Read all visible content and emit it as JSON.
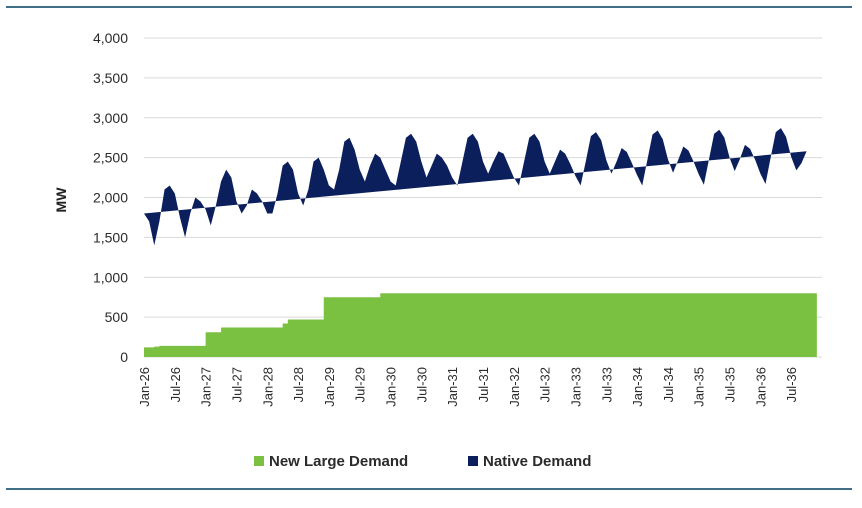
{
  "chart_data": {
    "type": "area",
    "stacked": true,
    "title": "",
    "xlabel": "",
    "ylabel": "MW",
    "ylim": [
      0,
      4000
    ],
    "yticks": [
      "0",
      "500",
      "1,000",
      "1,500",
      "2,000",
      "2,500",
      "3,000",
      "3,500",
      "4,000"
    ],
    "x_tick_labels": [
      "Jan-26",
      "Jul-26",
      "Jan-27",
      "Jul-27",
      "Jan-28",
      "Jul-28",
      "Jan-29",
      "Jul-29",
      "Jan-30",
      "Jul-30",
      "Jan-31",
      "Jul-31",
      "Jan-32",
      "Jul-32",
      "Jan-33",
      "Jul-33",
      "Jan-34",
      "Jul-34",
      "Jan-35",
      "Jul-35",
      "Jan-36",
      "Jul-36"
    ],
    "grid": true,
    "legend": "bottom",
    "x_start": "Jan-26",
    "x_interval": "month",
    "series": [
      {
        "name": "New Large Demand",
        "color": "#7ac142",
        "values": [
          120,
          120,
          130,
          140,
          140,
          140,
          140,
          140,
          140,
          140,
          140,
          140,
          310,
          310,
          310,
          370,
          370,
          370,
          370,
          370,
          370,
          370,
          370,
          370,
          370,
          370,
          370,
          420,
          470,
          470,
          470,
          470,
          470,
          470,
          470,
          750,
          750,
          750,
          750,
          750,
          750,
          750,
          750,
          750,
          750,
          750,
          800,
          800,
          800,
          800,
          800,
          800,
          800,
          800,
          800,
          800,
          800,
          800,
          800,
          800,
          800,
          800,
          800,
          800,
          800,
          800,
          800,
          800,
          800,
          800,
          800,
          800,
          800,
          800,
          800,
          800,
          800,
          800,
          800,
          800,
          800,
          800,
          800,
          800,
          800,
          800,
          800,
          800,
          800,
          800,
          800,
          800,
          800,
          800,
          800,
          800,
          800,
          800,
          800,
          800,
          800,
          800,
          800,
          800,
          800,
          800,
          800,
          800,
          800,
          800,
          800,
          800,
          800,
          800,
          800,
          800,
          800,
          800,
          800,
          800,
          800,
          800,
          800,
          800,
          800,
          800,
          800,
          800,
          800,
          800,
          800,
          800
        ]
      },
      {
        "name": "Native Demand",
        "color": "#0b1f5c",
        "total_values": [
          1800,
          1700,
          1400,
          1700,
          2100,
          2150,
          2050,
          1750,
          1500,
          1800,
          2000,
          1950,
          1850,
          1650,
          1900,
          2200,
          2350,
          2250,
          1950,
          1800,
          1900,
          2100,
          2050,
          1950,
          1800,
          1800,
          2050,
          2400,
          2450,
          2350,
          2050,
          1900,
          2100,
          2450,
          2500,
          2350,
          2150,
          2100,
          2350,
          2700,
          2750,
          2600,
          2350,
          2200,
          2400,
          2550,
          2500,
          2350,
          2200,
          2150,
          2450,
          2750,
          2800,
          2700,
          2450,
          2250,
          2400,
          2550,
          2500,
          2400,
          2250,
          2150,
          2450,
          2750,
          2800,
          2700,
          2450,
          2300,
          2450,
          2580,
          2550,
          2400,
          2250,
          2150,
          2450,
          2750,
          2800,
          2700,
          2450,
          2300,
          2450,
          2600,
          2550,
          2420,
          2270,
          2150,
          2450,
          2770,
          2820,
          2720,
          2470,
          2300,
          2450,
          2620,
          2570,
          2430,
          2280,
          2150,
          2470,
          2790,
          2840,
          2730,
          2480,
          2310,
          2470,
          2640,
          2590,
          2450,
          2290,
          2160,
          2480,
          2800,
          2850,
          2750,
          2500,
          2330,
          2480,
          2660,
          2610,
          2470,
          2300,
          2170,
          2500,
          2820,
          2870,
          2760,
          2510,
          2340,
          2430,
          2580
        ]
      }
    ]
  }
}
